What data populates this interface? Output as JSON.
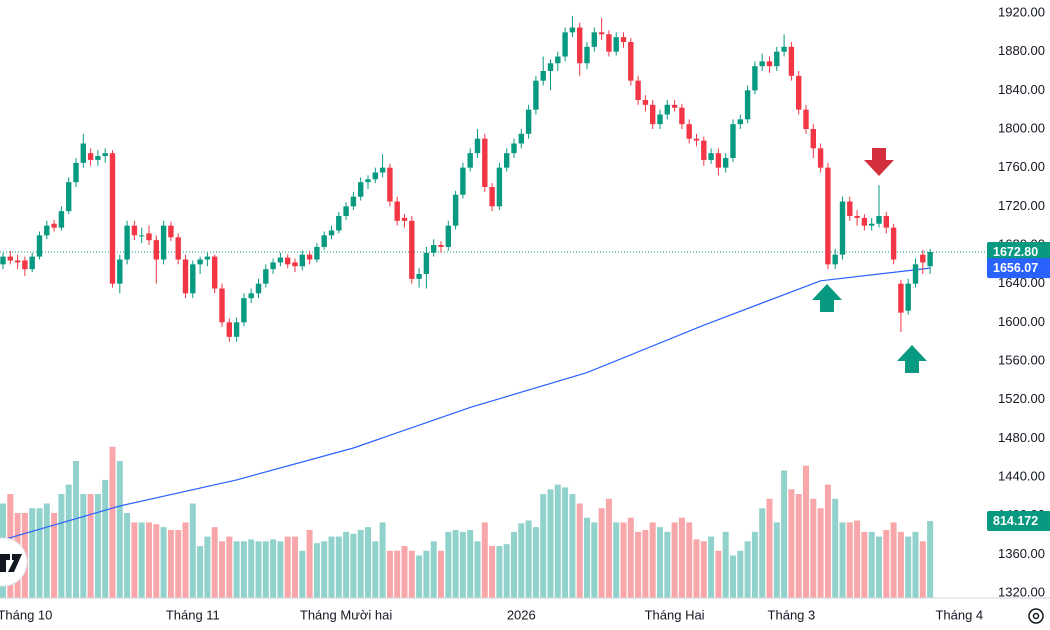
{
  "chart_data": {
    "type": "candlestick",
    "candles": [
      [
        1660,
        1672,
        1655,
        1668
      ],
      [
        1668,
        1674,
        1660,
        1664
      ],
      [
        1664,
        1670,
        1655,
        1662
      ],
      [
        1664,
        1668,
        1648,
        1655
      ],
      [
        1655,
        1672,
        1652,
        1668
      ],
      [
        1668,
        1694,
        1665,
        1690
      ],
      [
        1690,
        1705,
        1686,
        1700
      ],
      [
        1702,
        1706,
        1694,
        1698
      ],
      [
        1698,
        1720,
        1695,
        1715
      ],
      [
        1715,
        1750,
        1712,
        1745
      ],
      [
        1745,
        1770,
        1740,
        1765
      ],
      [
        1765,
        1795,
        1760,
        1785
      ],
      [
        1775,
        1780,
        1762,
        1768
      ],
      [
        1768,
        1778,
        1762,
        1772
      ],
      [
        1772,
        1780,
        1765,
        1775
      ],
      [
        1775,
        1778,
        1636,
        1640
      ],
      [
        1640,
        1670,
        1630,
        1665
      ],
      [
        1665,
        1705,
        1660,
        1700
      ],
      [
        1700,
        1705,
        1685,
        1690
      ],
      [
        1690,
        1698,
        1682,
        1690
      ],
      [
        1692,
        1700,
        1680,
        1685
      ],
      [
        1685,
        1690,
        1640,
        1665
      ],
      [
        1665,
        1705,
        1660,
        1700
      ],
      [
        1700,
        1704,
        1684,
        1688
      ],
      [
        1688,
        1692,
        1660,
        1665
      ],
      [
        1665,
        1670,
        1625,
        1630
      ],
      [
        1630,
        1664,
        1625,
        1660
      ],
      [
        1660,
        1668,
        1650,
        1665
      ],
      [
        1665,
        1672,
        1658,
        1668
      ],
      [
        1668,
        1670,
        1630,
        1635
      ],
      [
        1635,
        1640,
        1595,
        1600
      ],
      [
        1600,
        1604,
        1580,
        1585
      ],
      [
        1585,
        1605,
        1580,
        1600
      ],
      [
        1600,
        1630,
        1596,
        1625
      ],
      [
        1625,
        1635,
        1620,
        1630
      ],
      [
        1630,
        1645,
        1625,
        1640
      ],
      [
        1640,
        1660,
        1636,
        1655
      ],
      [
        1655,
        1666,
        1650,
        1662
      ],
      [
        1662,
        1672,
        1658,
        1667
      ],
      [
        1667,
        1670,
        1656,
        1660
      ],
      [
        1662,
        1666,
        1652,
        1658
      ],
      [
        1658,
        1674,
        1654,
        1670
      ],
      [
        1670,
        1674,
        1660,
        1665
      ],
      [
        1665,
        1682,
        1662,
        1678
      ],
      [
        1678,
        1694,
        1675,
        1690
      ],
      [
        1690,
        1700,
        1686,
        1695
      ],
      [
        1695,
        1714,
        1692,
        1710
      ],
      [
        1710,
        1724,
        1706,
        1720
      ],
      [
        1720,
        1735,
        1716,
        1730
      ],
      [
        1730,
        1750,
        1726,
        1745
      ],
      [
        1745,
        1752,
        1738,
        1748
      ],
      [
        1748,
        1760,
        1744,
        1755
      ],
      [
        1755,
        1774,
        1750,
        1760
      ],
      [
        1760,
        1764,
        1720,
        1725
      ],
      [
        1725,
        1730,
        1700,
        1705
      ],
      [
        1708,
        1712,
        1698,
        1705
      ],
      [
        1705,
        1710,
        1640,
        1645
      ],
      [
        1645,
        1656,
        1636,
        1650
      ],
      [
        1650,
        1678,
        1635,
        1672
      ],
      [
        1672,
        1686,
        1668,
        1680
      ],
      [
        1680,
        1684,
        1672,
        1678
      ],
      [
        1678,
        1705,
        1674,
        1700
      ],
      [
        1700,
        1736,
        1696,
        1732
      ],
      [
        1732,
        1765,
        1728,
        1760
      ],
      [
        1760,
        1780,
        1756,
        1775
      ],
      [
        1775,
        1800,
        1770,
        1790
      ],
      [
        1790,
        1795,
        1735,
        1740
      ],
      [
        1740,
        1744,
        1715,
        1720
      ],
      [
        1720,
        1765,
        1716,
        1760
      ],
      [
        1760,
        1780,
        1756,
        1775
      ],
      [
        1775,
        1790,
        1770,
        1785
      ],
      [
        1785,
        1800,
        1780,
        1795
      ],
      [
        1795,
        1825,
        1790,
        1820
      ],
      [
        1820,
        1855,
        1815,
        1850
      ],
      [
        1850,
        1875,
        1845,
        1860
      ],
      [
        1860,
        1872,
        1840,
        1868
      ],
      [
        1868,
        1880,
        1860,
        1875
      ],
      [
        1875,
        1905,
        1870,
        1900
      ],
      [
        1900,
        1917,
        1895,
        1905
      ],
      [
        1905,
        1910,
        1855,
        1868
      ],
      [
        1868,
        1890,
        1862,
        1885
      ],
      [
        1885,
        1905,
        1880,
        1900
      ],
      [
        1900,
        1915,
        1892,
        1898
      ],
      [
        1898,
        1902,
        1875,
        1880
      ],
      [
        1880,
        1900,
        1876,
        1895
      ],
      [
        1895,
        1900,
        1884,
        1890
      ],
      [
        1890,
        1894,
        1845,
        1850
      ],
      [
        1850,
        1855,
        1825,
        1830
      ],
      [
        1830,
        1835,
        1818,
        1825
      ],
      [
        1825,
        1830,
        1800,
        1805
      ],
      [
        1805,
        1820,
        1800,
        1815
      ],
      [
        1815,
        1830,
        1810,
        1825
      ],
      [
        1825,
        1830,
        1818,
        1822
      ],
      [
        1822,
        1826,
        1800,
        1805
      ],
      [
        1805,
        1810,
        1785,
        1790
      ],
      [
        1790,
        1795,
        1782,
        1788
      ],
      [
        1788,
        1792,
        1762,
        1768
      ],
      [
        1768,
        1780,
        1764,
        1775
      ],
      [
        1775,
        1780,
        1752,
        1760
      ],
      [
        1760,
        1775,
        1755,
        1770
      ],
      [
        1770,
        1810,
        1766,
        1805
      ],
      [
        1805,
        1815,
        1800,
        1810
      ],
      [
        1810,
        1845,
        1806,
        1840
      ],
      [
        1840,
        1870,
        1836,
        1865
      ],
      [
        1865,
        1878,
        1860,
        1870
      ],
      [
        1870,
        1875,
        1858,
        1865
      ],
      [
        1865,
        1885,
        1860,
        1880
      ],
      [
        1880,
        1898,
        1875,
        1885
      ],
      [
        1885,
        1890,
        1850,
        1855
      ],
      [
        1855,
        1860,
        1815,
        1820
      ],
      [
        1820,
        1825,
        1795,
        1800
      ],
      [
        1800,
        1805,
        1770,
        1780
      ],
      [
        1780,
        1785,
        1755,
        1760
      ],
      [
        1760,
        1765,
        1655,
        1660
      ],
      [
        1660,
        1676,
        1655,
        1670
      ],
      [
        1670,
        1730,
        1665,
        1725
      ],
      [
        1725,
        1730,
        1705,
        1710
      ],
      [
        1710,
        1716,
        1700,
        1708
      ],
      [
        1708,
        1712,
        1695,
        1700
      ],
      [
        1700,
        1708,
        1695,
        1702
      ],
      [
        1702,
        1742,
        1698,
        1710
      ],
      [
        1710,
        1714,
        1692,
        1698
      ],
      [
        1698,
        1702,
        1660,
        1665
      ],
      [
        1640,
        1644,
        1590,
        1610
      ],
      [
        1612,
        1645,
        1608,
        1640
      ],
      [
        1640,
        1666,
        1636,
        1660
      ],
      [
        1670,
        1675,
        1650,
        1662
      ],
      [
        1658,
        1676,
        1650,
        1672.8
      ]
    ],
    "volumes": [
      1000,
      1100,
      900,
      900,
      950,
      950,
      1000,
      900,
      1100,
      1200,
      1450,
      1100,
      1100,
      1100,
      1250,
      1600,
      1450,
      900,
      800,
      800,
      800,
      780,
      750,
      720,
      720,
      800,
      1000,
      550,
      650,
      750,
      600,
      650,
      600,
      600,
      620,
      600,
      600,
      620,
      600,
      650,
      650,
      500,
      720,
      580,
      600,
      650,
      650,
      700,
      680,
      720,
      750,
      600,
      800,
      500,
      500,
      550,
      500,
      450,
      500,
      600,
      500,
      700,
      720,
      700,
      720,
      600,
      800,
      550,
      550,
      570,
      700,
      790,
      820,
      750,
      1100,
      1150,
      1200,
      1170,
      1100,
      1000,
      850,
      800,
      950,
      1050,
      800,
      800,
      850,
      700,
      720,
      800,
      750,
      700,
      800,
      850,
      800,
      620,
      600,
      650,
      500,
      700,
      450,
      500,
      600,
      700,
      950,
      1050,
      800,
      1350,
      1150,
      1100,
      1400,
      1050,
      950,
      1200,
      1050,
      800,
      800,
      820,
      700,
      700,
      650,
      720,
      800,
      700,
      650,
      700,
      600,
      814.172
    ],
    "ylim": [
      1320,
      1920
    ],
    "yticks": [
      {
        "value": 1920,
        "label": "1920.00"
      },
      {
        "value": 1880,
        "label": "1880.00"
      },
      {
        "value": 1840,
        "label": "1840.00"
      },
      {
        "value": 1800,
        "label": "1800.00"
      },
      {
        "value": 1760,
        "label": "1760.00"
      },
      {
        "value": 1720,
        "label": "1720.00"
      },
      {
        "value": 1680,
        "label": "1680.00"
      },
      {
        "value": 1640,
        "label": "1640.00"
      },
      {
        "value": 1600,
        "label": "1600.00"
      },
      {
        "value": 1560,
        "label": "1560.00"
      },
      {
        "value": 1520,
        "label": "1520.00"
      },
      {
        "value": 1480,
        "label": "1480.00"
      },
      {
        "value": 1440,
        "label": "1440.00"
      },
      {
        "value": 1400,
        "label": "1400.00"
      },
      {
        "value": 1360,
        "label": "1360.00"
      },
      {
        "value": 1320,
        "label": "1320.00"
      }
    ],
    "y2lim": [
      0,
      2000
    ],
    "xticks": [
      {
        "value": 3,
        "label": "Tháng 10"
      },
      {
        "value": 26,
        "label": "Tháng 11"
      },
      {
        "value": 47,
        "label": "Tháng Mười hai"
      },
      {
        "value": 71,
        "label": "2026"
      },
      {
        "value": 92,
        "label": "Tháng Hai"
      },
      {
        "value": 108,
        "label": "Tháng 3"
      },
      {
        "value": 131,
        "label": "Tháng 4"
      }
    ],
    "ma": {
      "color": "#2962ff",
      "x": [
        0,
        16,
        32,
        48,
        64,
        80,
        96,
        112,
        127
      ],
      "values": [
        1375,
        1410,
        1437,
        1470,
        1512,
        1548,
        1597,
        1643,
        1656.07
      ],
      "value_labels": [
        null,
        null,
        null,
        null,
        null,
        null,
        null,
        null,
        "1656.07"
      ]
    },
    "last_price": {
      "value": 1672.8,
      "label": "1672.80"
    },
    "volume_last": 814.172,
    "colors": {
      "up": "#089981",
      "down": "#f23645",
      "up_volume": "#92d2cc",
      "down_volume": "#f8a6a9"
    }
  }
}
